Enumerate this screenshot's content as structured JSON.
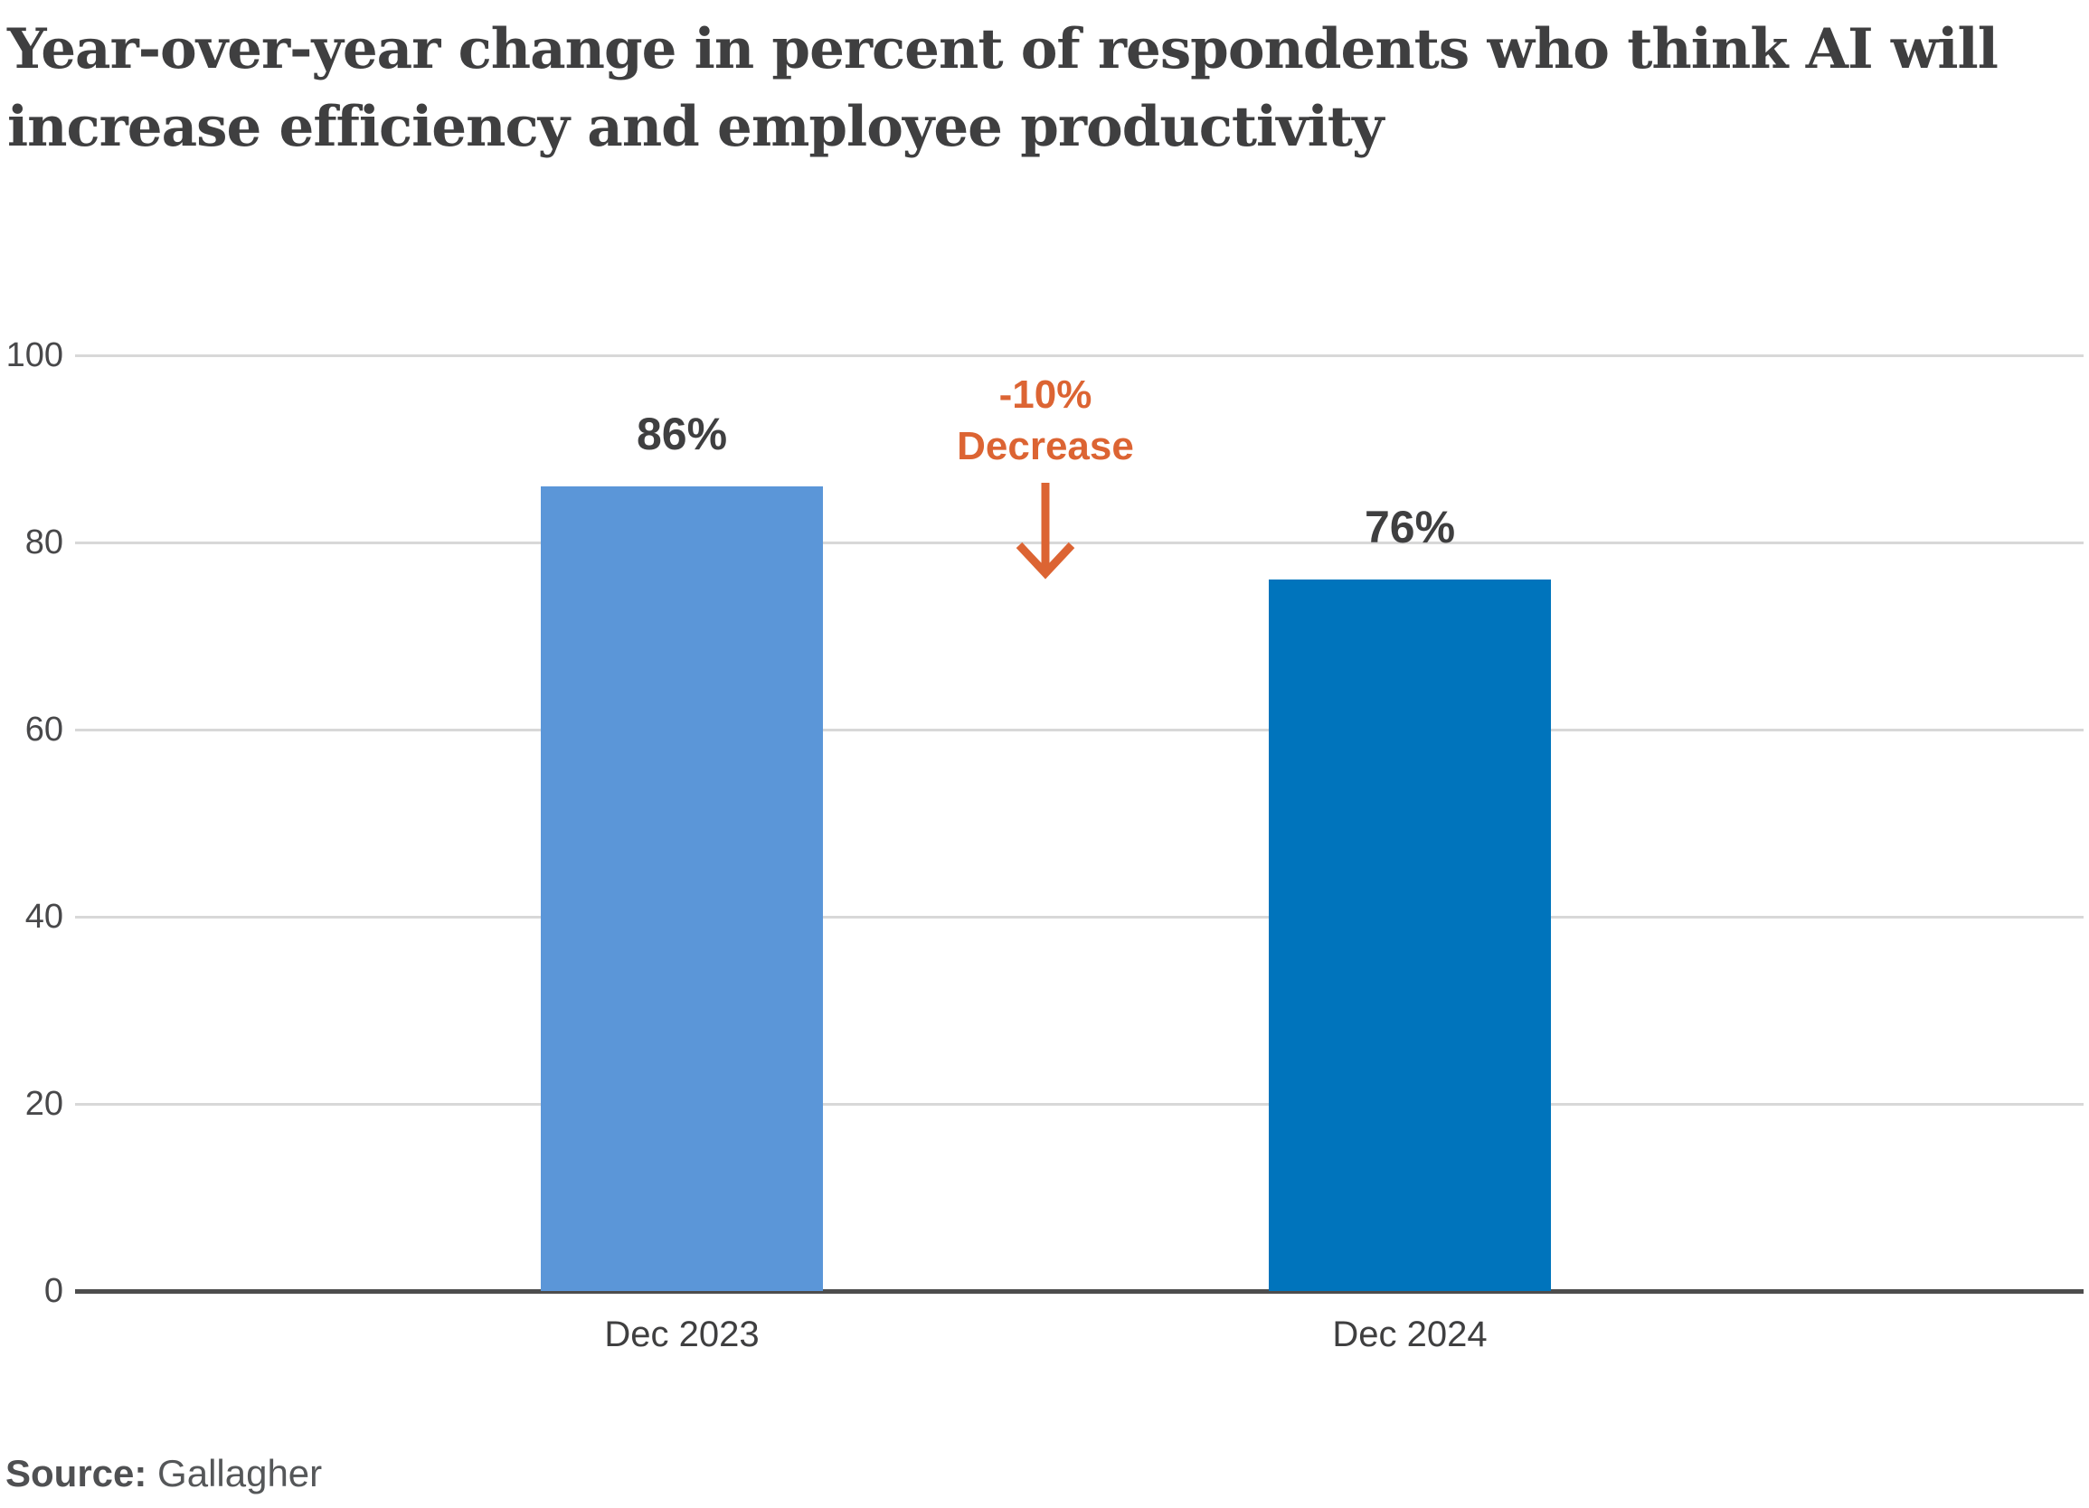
{
  "chart_data": {
    "type": "bar",
    "title": "Year-over-year change in percent of respondents who think AI will increase efficiency and employee productivity",
    "title_lines": [
      "Year-over-year change in percent of respondents who think AI will",
      "increase efficiency and employee productivity"
    ],
    "categories": [
      "Dec 2023",
      "Dec 2024"
    ],
    "values": [
      86,
      76
    ],
    "value_labels": [
      "86%",
      "76%"
    ],
    "bar_colors": [
      "#5B96D8",
      "#0074BC"
    ],
    "xlabel": "",
    "ylabel": "",
    "ylim": [
      0,
      100
    ],
    "yticks": [
      0,
      20,
      40,
      60,
      80,
      100
    ],
    "grid": "horizontal",
    "legend": "none",
    "annotation": {
      "line1": "-10%",
      "line2": "Decrease",
      "arrow": "down",
      "color": "#DC6433"
    }
  },
  "source": {
    "label": "Source:",
    "value": "Gallagher"
  },
  "colors": {
    "background": "#FFFFFF",
    "title_text": "#3F3F40",
    "axis_text": "#48484A",
    "gridline": "#D8D8D8",
    "baseline": "#4D4D4D"
  }
}
